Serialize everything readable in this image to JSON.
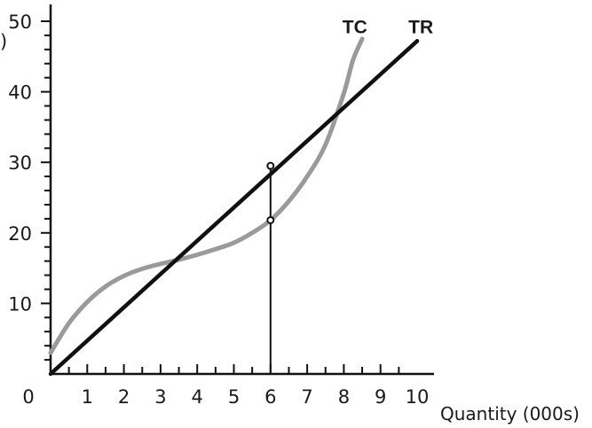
{
  "chart_data": {
    "type": "line",
    "title": "",
    "xlabel": "Quantity (000s)",
    "ylabel": "",
    "xlim": [
      0,
      10
    ],
    "ylim": [
      0,
      50
    ],
    "x_ticks": [
      1,
      2,
      3,
      4,
      5,
      6,
      7,
      8,
      9,
      10
    ],
    "x_tick_labels": [
      "1",
      "2",
      "3",
      "4",
      "5",
      "6",
      "7",
      "8",
      "9",
      "10"
    ],
    "y_ticks": [
      10,
      20,
      30,
      40,
      50
    ],
    "y_tick_labels": [
      "10",
      "20",
      "30",
      "40",
      "50"
    ],
    "origin_label": "0",
    "y_label_fragment": ")",
    "grid": false,
    "series": [
      {
        "name": "TR",
        "color": "#111111",
        "x": [
          0,
          10
        ],
        "y": [
          0,
          47.2
        ]
      },
      {
        "name": "TC",
        "color": "#9a9a9a",
        "x": [
          0,
          0.5,
          1,
          1.5,
          2,
          2.5,
          3,
          3.5,
          4,
          4.5,
          5,
          5.5,
          6,
          6.5,
          7,
          7.5,
          8,
          8.25,
          8.5
        ],
        "y": [
          3,
          7.2,
          10.2,
          12.4,
          13.9,
          14.9,
          15.6,
          16.2,
          16.9,
          17.7,
          18.6,
          20,
          21.8,
          24.5,
          28,
          32.5,
          39.8,
          44.5,
          47.5
        ]
      }
    ],
    "reference_line": {
      "x": 6,
      "y_from": 0,
      "y_to": 29.5
    },
    "marked_points": [
      {
        "x": 6,
        "y": 29.5
      },
      {
        "x": 6,
        "y": 21.8
      }
    ]
  }
}
